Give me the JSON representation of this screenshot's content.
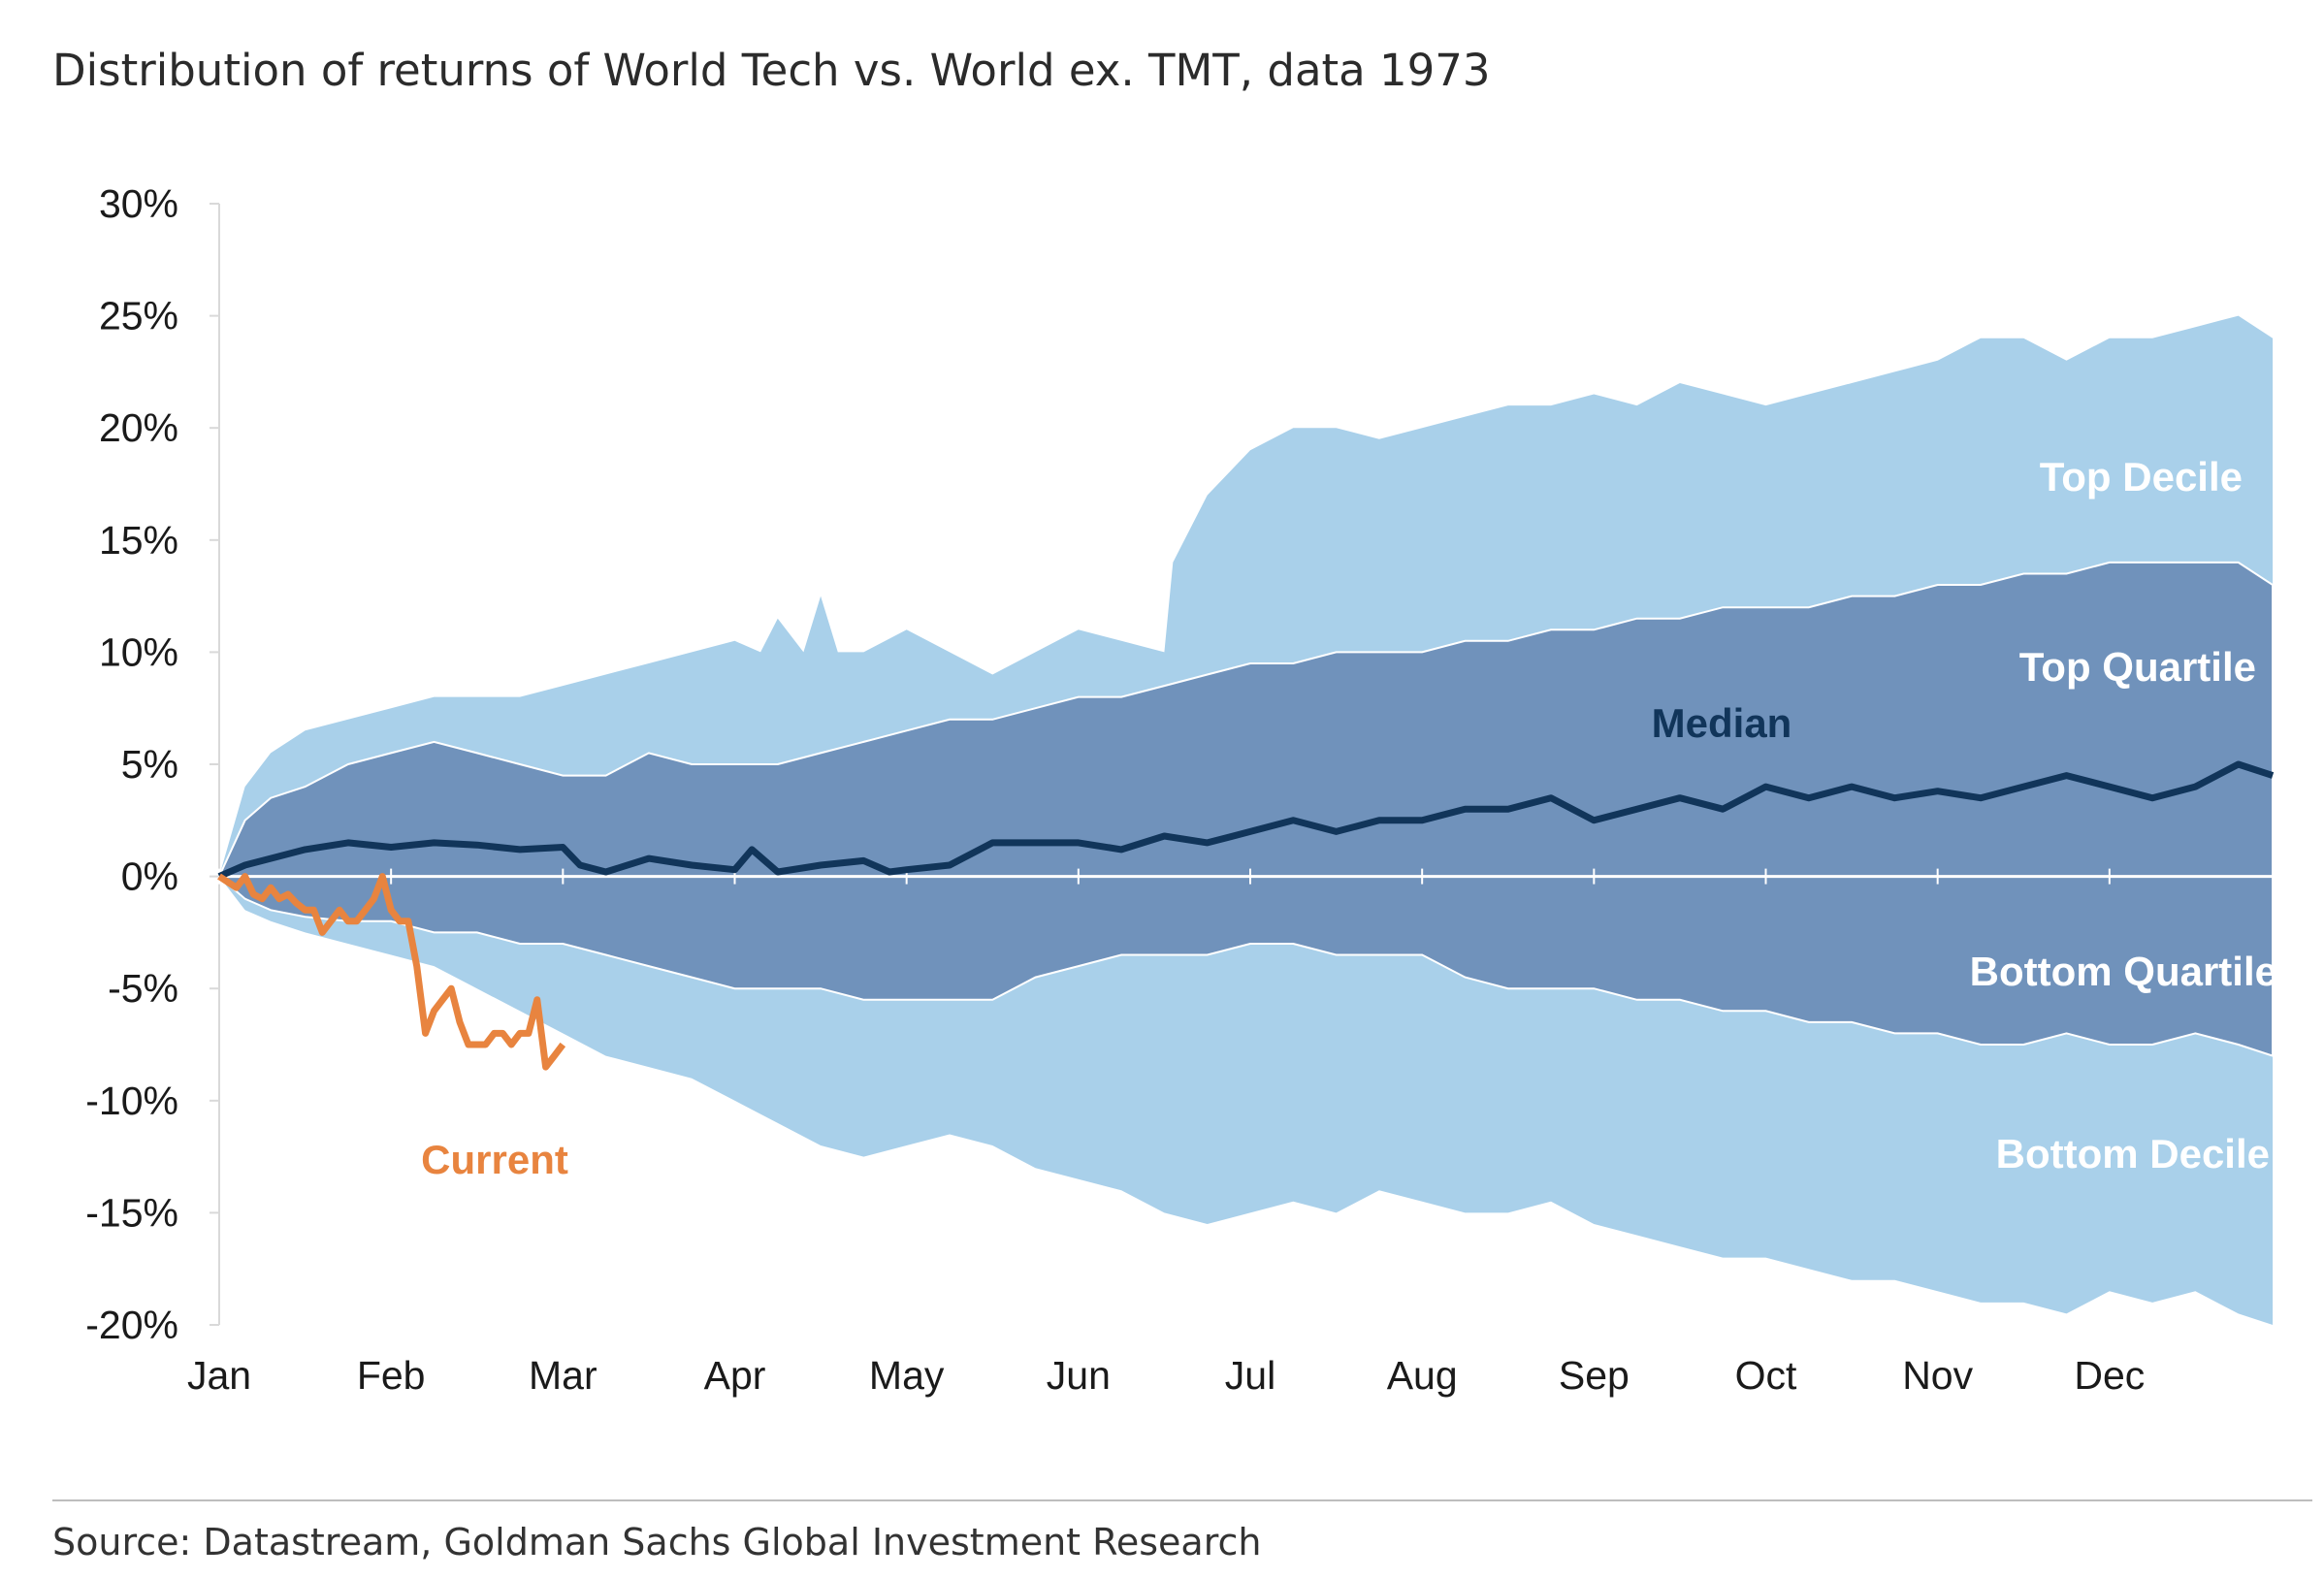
{
  "title": "Distribution of returns of World Tech vs. World ex. TMT, data 1973",
  "source": "Source: Datastream, Goldman Sachs Global Investment Research",
  "colors": {
    "decile_band": "#a9d0ea",
    "quartile_band": "#7092bb",
    "median": "#11355a",
    "current": "#e8843f",
    "zero_line": "#ffffff",
    "axis": "#d9d9d9"
  },
  "chart_data": {
    "type": "area",
    "title": "Distribution of returns of World Tech vs. World ex. TMT, data 1973",
    "ylim": [
      -20,
      30
    ],
    "yticks": [
      30,
      25,
      20,
      15,
      10,
      5,
      0,
      -5,
      -10,
      -15,
      -20
    ],
    "ytick_labels": [
      "30%",
      "25%",
      "20%",
      "15%",
      "10%",
      "5%",
      "0%",
      "-5%",
      "-10%",
      "-15%",
      "-20%"
    ],
    "xlim": [
      0,
      12
    ],
    "x_tick_labels": [
      "Jan",
      "Feb",
      "Mar",
      "Apr",
      "May",
      "Jun",
      "Jul",
      "Aug",
      "Sep",
      "Oct",
      "Nov",
      "Dec"
    ],
    "x_tick_positions": [
      0,
      1,
      2,
      3,
      4,
      5,
      6,
      7,
      8,
      9,
      10,
      11
    ],
    "x_unit": "months from start of Jan",
    "grid": false,
    "annotations": [
      {
        "text": "Top Decile",
        "series": "Top Decile"
      },
      {
        "text": "Top Quartile",
        "series": "Top Quartile"
      },
      {
        "text": "Median",
        "series": "Median"
      },
      {
        "text": "Bottom Quartile",
        "series": "Bottom Quartile"
      },
      {
        "text": "Bottom Decile",
        "series": "Bottom Decile"
      },
      {
        "text": "Current",
        "series": "Current"
      }
    ],
    "series": [
      {
        "name": "Top Decile",
        "x": [
          0,
          0.15,
          0.3,
          0.5,
          0.75,
          1.0,
          1.25,
          1.5,
          1.75,
          2.0,
          2.25,
          2.5,
          2.75,
          3.0,
          3.15,
          3.25,
          3.4,
          3.5,
          3.6,
          3.75,
          4.0,
          4.25,
          4.5,
          4.75,
          5.0,
          5.25,
          5.5,
          5.55,
          5.75,
          6.0,
          6.25,
          6.5,
          6.75,
          7.0,
          7.25,
          7.5,
          7.75,
          8.0,
          8.25,
          8.5,
          8.75,
          9.0,
          9.25,
          9.5,
          9.75,
          10.0,
          10.25,
          10.5,
          10.75,
          11.0,
          11.25,
          11.5,
          11.75,
          11.95
        ],
        "values": [
          0,
          4,
          5.5,
          6.5,
          7,
          7.5,
          8,
          8,
          8,
          8.5,
          9,
          9.5,
          10,
          10.5,
          10,
          11.5,
          10,
          12.5,
          10,
          10,
          11,
          10,
          9,
          10,
          11,
          10.5,
          10,
          14,
          17,
          19,
          20,
          20,
          19.5,
          20,
          20.5,
          21,
          21,
          21.5,
          21,
          22,
          21.5,
          21,
          21.5,
          22,
          22.5,
          23,
          24,
          24,
          23,
          24,
          24,
          24.5,
          25,
          24
        ],
        "fill": "decile_band"
      },
      {
        "name": "Top Quartile",
        "x": [
          0,
          0.15,
          0.3,
          0.5,
          0.75,
          1.0,
          1.25,
          1.5,
          1.75,
          2.0,
          2.25,
          2.5,
          2.75,
          3.0,
          3.25,
          3.5,
          3.75,
          4.0,
          4.25,
          4.5,
          4.75,
          5.0,
          5.25,
          5.5,
          5.75,
          6.0,
          6.25,
          6.5,
          6.75,
          7.0,
          7.25,
          7.5,
          7.75,
          8.0,
          8.25,
          8.5,
          8.75,
          9.0,
          9.25,
          9.5,
          9.75,
          10.0,
          10.25,
          10.5,
          10.75,
          11.0,
          11.25,
          11.5,
          11.75,
          11.95
        ],
        "values": [
          0,
          2.5,
          3.5,
          4,
          5,
          5.5,
          6,
          5.5,
          5,
          4.5,
          4.5,
          5.5,
          5,
          5,
          5,
          5.5,
          6,
          6.5,
          7,
          7,
          7.5,
          8,
          8,
          8.5,
          9,
          9.5,
          9.5,
          10,
          10,
          10,
          10.5,
          10.5,
          11,
          11,
          11.5,
          11.5,
          12,
          12,
          12,
          12.5,
          12.5,
          13,
          13,
          13.5,
          13.5,
          14,
          14,
          14,
          14,
          13
        ]
      },
      {
        "name": "Median",
        "x": [
          0,
          0.15,
          0.3,
          0.5,
          0.75,
          1.0,
          1.25,
          1.5,
          1.75,
          2.0,
          2.1,
          2.25,
          2.5,
          2.75,
          3.0,
          3.1,
          3.25,
          3.5,
          3.75,
          3.9,
          4.0,
          4.25,
          4.5,
          4.75,
          5.0,
          5.25,
          5.5,
          5.75,
          6.0,
          6.25,
          6.5,
          6.75,
          7.0,
          7.25,
          7.5,
          7.75,
          8.0,
          8.25,
          8.5,
          8.75,
          9.0,
          9.25,
          9.5,
          9.75,
          10.0,
          10.25,
          10.5,
          10.75,
          11.0,
          11.25,
          11.5,
          11.75,
          11.95
        ],
        "values": [
          0,
          0.5,
          0.8,
          1.2,
          1.5,
          1.3,
          1.5,
          1.4,
          1.2,
          1.3,
          0.5,
          0.2,
          0.8,
          0.5,
          0.3,
          1.2,
          0.2,
          0.5,
          0.7,
          0.2,
          0.3,
          0.5,
          1.5,
          1.5,
          1.5,
          1.2,
          1.8,
          1.5,
          2,
          2.5,
          2,
          2.5,
          2.5,
          3,
          3,
          3.5,
          2.5,
          3,
          3.5,
          3,
          4,
          3.5,
          4,
          3.5,
          3.8,
          3.5,
          4,
          4.5,
          4,
          3.5,
          4,
          5,
          4.5
        ]
      },
      {
        "name": "Bottom Quartile",
        "x": [
          0,
          0.15,
          0.3,
          0.5,
          0.75,
          1.0,
          1.25,
          1.5,
          1.75,
          2.0,
          2.25,
          2.5,
          2.75,
          3.0,
          3.25,
          3.5,
          3.75,
          4.0,
          4.25,
          4.5,
          4.75,
          5.0,
          5.25,
          5.5,
          5.75,
          6.0,
          6.25,
          6.5,
          6.75,
          7.0,
          7.25,
          7.5,
          7.75,
          8.0,
          8.25,
          8.5,
          8.75,
          9.0,
          9.25,
          9.5,
          9.75,
          10.0,
          10.25,
          10.5,
          10.75,
          11.0,
          11.25,
          11.5,
          11.75,
          11.95
        ],
        "values": [
          0,
          -1,
          -1.5,
          -1.8,
          -2,
          -2,
          -2.5,
          -2.5,
          -3,
          -3,
          -3.5,
          -4,
          -4.5,
          -5,
          -5,
          -5,
          -5.5,
          -5.5,
          -5.5,
          -5.5,
          -4.5,
          -4,
          -3.5,
          -3.5,
          -3.5,
          -3,
          -3,
          -3.5,
          -3.5,
          -3.5,
          -4.5,
          -5,
          -5,
          -5,
          -5.5,
          -5.5,
          -6,
          -6,
          -6.5,
          -6.5,
          -7,
          -7,
          -7.5,
          -7.5,
          -7,
          -7.5,
          -7.5,
          -7,
          -7.5,
          -8
        ]
      },
      {
        "name": "Bottom Decile",
        "x": [
          0,
          0.15,
          0.3,
          0.5,
          0.75,
          1.0,
          1.25,
          1.5,
          1.75,
          2.0,
          2.25,
          2.5,
          2.75,
          3.0,
          3.25,
          3.5,
          3.75,
          4.0,
          4.25,
          4.5,
          4.75,
          5.0,
          5.25,
          5.5,
          5.75,
          6.0,
          6.25,
          6.5,
          6.75,
          7.0,
          7.25,
          7.5,
          7.75,
          8.0,
          8.25,
          8.5,
          8.75,
          9.0,
          9.25,
          9.5,
          9.75,
          10.0,
          10.25,
          10.5,
          10.75,
          11.0,
          11.25,
          11.5,
          11.75,
          11.95
        ],
        "values": [
          0,
          -1.5,
          -2,
          -2.5,
          -3,
          -3.5,
          -4,
          -5,
          -6,
          -7,
          -8,
          -8.5,
          -9,
          -10,
          -11,
          -12,
          -12.5,
          -12,
          -11.5,
          -12,
          -13,
          -13.5,
          -14,
          -15,
          -15.5,
          -15,
          -14.5,
          -15,
          -14,
          -14.5,
          -15,
          -15,
          -14.5,
          -15.5,
          -16,
          -16.5,
          -17,
          -17,
          -17.5,
          -18,
          -18,
          -18.5,
          -19,
          -19,
          -19.5,
          -18.5,
          -19,
          -18.5,
          -19.5,
          -20
        ]
      },
      {
        "name": "Current",
        "x": [
          0,
          0.1,
          0.15,
          0.2,
          0.25,
          0.3,
          0.35,
          0.4,
          0.45,
          0.5,
          0.55,
          0.6,
          0.65,
          0.7,
          0.75,
          0.8,
          0.85,
          0.9,
          0.95,
          1.0,
          1.05,
          1.1,
          1.15,
          1.2,
          1.25,
          1.3,
          1.35,
          1.4,
          1.45,
          1.5,
          1.55,
          1.6,
          1.65,
          1.7,
          1.75,
          1.8,
          1.85,
          1.9,
          1.95,
          2.0
        ],
        "values": [
          0,
          -0.5,
          0,
          -0.8,
          -1,
          -0.5,
          -1,
          -0.8,
          -1.2,
          -1.5,
          -1.5,
          -2.5,
          -2,
          -1.5,
          -2,
          -2,
          -1.5,
          -1,
          0,
          -1.5,
          -2,
          -2,
          -4,
          -7,
          -6,
          -5.5,
          -5,
          -6.5,
          -7.5,
          -7.5,
          -7.5,
          -7,
          -7,
          -7.5,
          -7,
          -7,
          -5.5,
          -8.5,
          -8,
          -7.5
        ],
        "color": "current"
      }
    ]
  }
}
